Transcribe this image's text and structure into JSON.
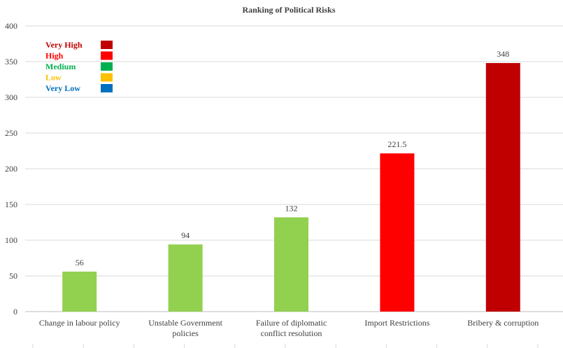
{
  "chart_data": {
    "type": "bar",
    "title": "Ranking of Political Risks",
    "categories": [
      [
        "Change in labour policy"
      ],
      [
        "Unstable Government",
        "policies"
      ],
      [
        "Failure of diplomatic",
        "conflict resolution"
      ],
      [
        "Import Restrictions"
      ],
      [
        "Bribery & corruption"
      ]
    ],
    "values": [
      56,
      94,
      132,
      221.5,
      348
    ],
    "data_labels": [
      "56",
      "94",
      "132",
      "221.5",
      "348"
    ],
    "bar_colors": [
      "#92d050",
      "#92d050",
      "#92d050",
      "#ff0000",
      "#c00000"
    ],
    "ylim": [
      0,
      400
    ],
    "yticks": [
      0,
      50,
      100,
      150,
      200,
      250,
      300,
      350,
      400
    ],
    "grid": true,
    "legend_position": "top-left",
    "legend": [
      {
        "label": "Very High",
        "color": "#c00000"
      },
      {
        "label": "High",
        "color": "#ff0000"
      },
      {
        "label": "Medium",
        "color": "#00b050"
      },
      {
        "label": "Low",
        "color": "#ffc000"
      },
      {
        "label": "Very Low",
        "color": "#0070c0"
      }
    ]
  }
}
